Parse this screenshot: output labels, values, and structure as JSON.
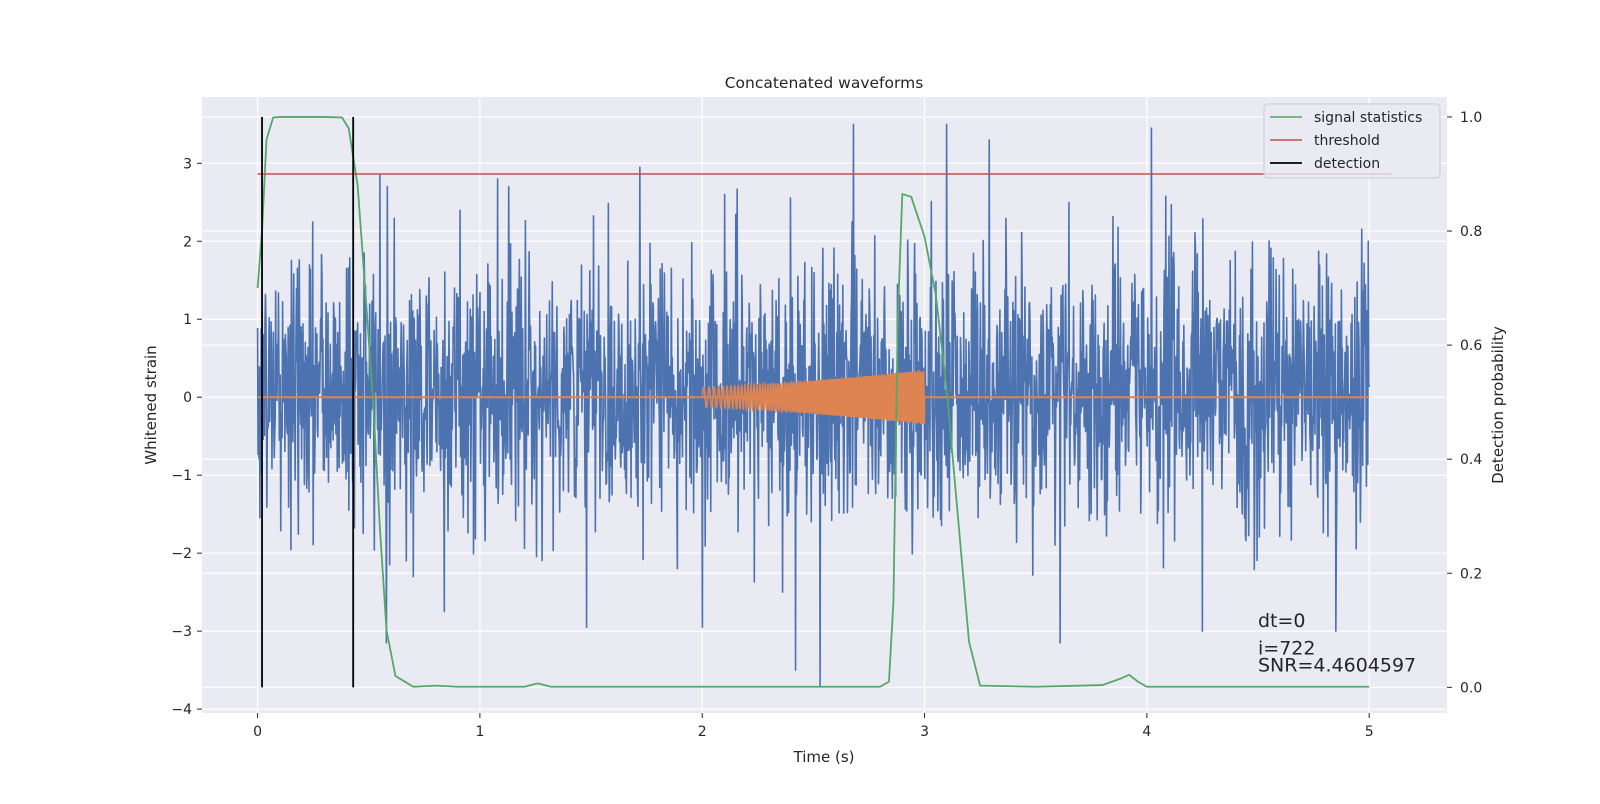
{
  "chart_data": {
    "type": "line",
    "title": "Concatenated waveforms",
    "xlabel": "Time (s)",
    "ylabel": "Whitened strain",
    "y2label": "Detection probability",
    "xlim": [
      -0.25,
      5.35
    ],
    "ylim": [
      -4.05,
      3.85
    ],
    "y2lim": [
      -0.045,
      1.035
    ],
    "x_ticks": [
      0,
      1,
      2,
      3,
      4,
      5
    ],
    "y_ticks": [
      -4,
      -3,
      -2,
      -1,
      0,
      1,
      2,
      3
    ],
    "y2_ticks": [
      0.0,
      0.2,
      0.4,
      0.6,
      0.8,
      1.0
    ],
    "x_tick_labels": [
      "0",
      "1",
      "2",
      "3",
      "4",
      "5"
    ],
    "y_tick_labels": [
      "−4",
      "−3",
      "−2",
      "−1",
      "0",
      "1",
      "2",
      "3"
    ],
    "y2_tick_labels": [
      "0.0",
      "0.2",
      "0.4",
      "0.6",
      "0.8",
      "1.0"
    ],
    "grid": true,
    "legend_position": "upper right",
    "legend": [
      {
        "label": "signal statistics",
        "color": "#55a868"
      },
      {
        "label": "threshold",
        "color": "#c44e52"
      },
      {
        "label": "detection",
        "color": "#000000"
      }
    ],
    "series": [
      {
        "name": "strain",
        "axis": "left",
        "color": "#4c72b0",
        "kind": "noise",
        "x_range": [
          0,
          5
        ],
        "typical_range": [
          -1.6,
          1.8
        ],
        "extremes": [
          {
            "x": 0.4,
            "y": 1.65
          },
          {
            "x": 0.55,
            "y": 2.85
          },
          {
            "x": 0.84,
            "y": 2.7
          },
          {
            "x": 1.08,
            "y": 2.8
          },
          {
            "x": 1.13,
            "y": 2.7
          },
          {
            "x": 1.72,
            "y": 2.95
          },
          {
            "x": 2.42,
            "y": 2.8
          },
          {
            "x": 2.68,
            "y": 3.5
          },
          {
            "x": 3.1,
            "y": 3.5
          },
          {
            "x": 3.29,
            "y": 3.3
          },
          {
            "x": 4.02,
            "y": 3.45
          },
          {
            "x": 4.85,
            "y": 2.7
          },
          {
            "x": 0.58,
            "y": -3.15
          },
          {
            "x": 0.84,
            "y": -2.75
          },
          {
            "x": 1.48,
            "y": -2.95
          },
          {
            "x": 2.0,
            "y": -2.95
          },
          {
            "x": 2.42,
            "y": -3.5
          },
          {
            "x": 2.53,
            "y": -3.7
          },
          {
            "x": 3.61,
            "y": -3.15
          },
          {
            "x": 4.25,
            "y": -3.0
          },
          {
            "x": 4.85,
            "y": -3.0
          }
        ]
      },
      {
        "name": "injected signal",
        "axis": "left",
        "color": "#dd8452",
        "kind": "chirp",
        "baseline": 0,
        "x_range": [
          0,
          5
        ],
        "chirp_range": [
          2.0,
          3.0
        ],
        "amplitude_start": 0.13,
        "amplitude_end": 0.35
      },
      {
        "name": "signal statistics",
        "axis": "right",
        "color": "#55a868",
        "x": [
          0.0,
          0.02,
          0.04,
          0.07,
          0.1,
          0.2,
          0.3,
          0.38,
          0.41,
          0.45,
          0.48,
          0.52,
          0.55,
          0.58,
          0.62,
          0.7,
          0.8,
          0.9,
          1.2,
          1.26,
          1.32,
          1.6,
          2.0,
          2.5,
          2.8,
          2.84,
          2.86,
          2.88,
          2.9,
          2.94,
          3.0,
          3.05,
          3.1,
          3.15,
          3.2,
          3.25,
          3.5,
          3.8,
          3.88,
          3.92,
          3.96,
          4.0,
          4.5,
          5.0
        ],
        "values": [
          0.7,
          0.8,
          0.96,
          0.999,
          1.0,
          1.0,
          1.0,
          0.999,
          0.98,
          0.88,
          0.72,
          0.5,
          0.28,
          0.1,
          0.02,
          0.001,
          0.003,
          0.001,
          0.001,
          0.007,
          0.001,
          0.001,
          0.001,
          0.001,
          0.001,
          0.01,
          0.15,
          0.65,
          0.865,
          0.86,
          0.79,
          0.69,
          0.52,
          0.3,
          0.08,
          0.003,
          0.001,
          0.004,
          0.015,
          0.022,
          0.01,
          0.001,
          0.001,
          0.001
        ]
      },
      {
        "name": "threshold",
        "axis": "right",
        "color": "#c44e52",
        "x": [
          0.0,
          5.1
        ],
        "values": [
          0.9,
          0.9
        ]
      },
      {
        "name": "detection",
        "axis": "right",
        "color": "#000000",
        "kind": "vlines",
        "x": [
          0.02,
          0.43
        ],
        "y_range": [
          0.0,
          1.0
        ]
      }
    ],
    "annotations": [
      {
        "text": "dt=0",
        "x": 4.5,
        "y": -2.95
      },
      {
        "text": "i=722",
        "x": 4.5,
        "y": -3.3
      },
      {
        "text": "SNR=4.4604597",
        "x": 4.5,
        "y": -3.52
      }
    ]
  }
}
